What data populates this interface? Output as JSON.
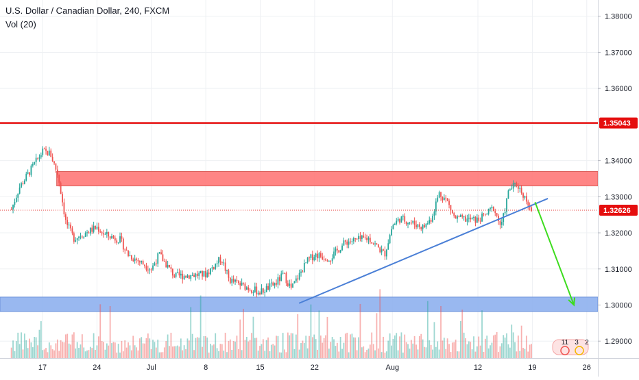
{
  "header": {
    "symbol_title": "U.S. Dollar / Canadian Dollar, 240, FXCM",
    "volume_label": "Vol (20)"
  },
  "price_scale": {
    "ticks": [
      "1.38000",
      "1.37000",
      "1.36000",
      "1.35043",
      "1.34000",
      "1.33000",
      "1.32626",
      "1.32000",
      "1.31000",
      "1.30000",
      "1.29000"
    ]
  },
  "time_scale": {
    "ticks": [
      "17",
      "24",
      "Jul",
      "8",
      "15",
      "22",
      "Aug",
      "12",
      "19",
      "26"
    ]
  },
  "badges": {
    "resistance_price": "1.35043",
    "last_price": "1.32626"
  },
  "corner_logo": {
    "numbers": [
      "11",
      "3",
      "2"
    ]
  },
  "colors": {
    "up_candle": "#26a69a",
    "down_candle": "#ef5350",
    "resistance_line": "#e50e0e",
    "resistance_zone": "#ff7f7f",
    "support_zone": "#8fb1ef",
    "trendline": "#4a7fd6",
    "arrow": "#3ddc1e",
    "last_price_line": "#e53935"
  },
  "chart_data": {
    "type": "candlestick",
    "interval": "240",
    "ylim": [
      1.2853,
      1.3845
    ],
    "y_ticks": [
      1.38,
      1.37,
      1.36,
      1.35,
      1.34,
      1.33,
      1.32,
      1.31,
      1.3,
      1.29
    ],
    "x_ticks": [
      "17",
      "24",
      "Jul",
      "8",
      "15",
      "22",
      "Aug",
      "12",
      "19",
      "26"
    ],
    "price_path": [
      {
        "t": "Jun 13",
        "price": 1.3265
      },
      {
        "t": "Jun 14",
        "price": 1.3325
      },
      {
        "t": "Jun 17",
        "price": 1.3425
      },
      {
        "t": "Jun 18",
        "price": 1.342
      },
      {
        "t": "Jun 19",
        "price": 1.336
      },
      {
        "t": "Jun 20",
        "price": 1.323
      },
      {
        "t": "Jun 21",
        "price": 1.3185
      },
      {
        "t": "Jun 24",
        "price": 1.3215
      },
      {
        "t": "Jun 25",
        "price": 1.3195
      },
      {
        "t": "Jun 27",
        "price": 1.318
      },
      {
        "t": "Jun 28",
        "price": 1.314
      },
      {
        "t": "Jul 1",
        "price": 1.31
      },
      {
        "t": "Jul 2",
        "price": 1.314
      },
      {
        "t": "Jul 4",
        "price": 1.308
      },
      {
        "t": "Jul 8",
        "price": 1.3085
      },
      {
        "t": "Jul 10",
        "price": 1.313
      },
      {
        "t": "Jul 11",
        "price": 1.307
      },
      {
        "t": "Jul 12",
        "price": 1.306
      },
      {
        "t": "Jul 15",
        "price": 1.3035
      },
      {
        "t": "Jul 17",
        "price": 1.306
      },
      {
        "t": "Jul 18",
        "price": 1.3085
      },
      {
        "t": "Jul 19",
        "price": 1.3045
      },
      {
        "t": "Jul 21",
        "price": 1.312
      },
      {
        "t": "Jul 22",
        "price": 1.314
      },
      {
        "t": "Jul 24",
        "price": 1.313
      },
      {
        "t": "Jul 26",
        "price": 1.3175
      },
      {
        "t": "Jul 29",
        "price": 1.3185
      },
      {
        "t": "Jul 31",
        "price": 1.314
      },
      {
        "t": "Aug 1",
        "price": 1.322
      },
      {
        "t": "Aug 2",
        "price": 1.324
      },
      {
        "t": "Aug 5",
        "price": 1.3215
      },
      {
        "t": "Aug 6",
        "price": 1.324
      },
      {
        "t": "Aug 7",
        "price": 1.331
      },
      {
        "t": "Aug 8",
        "price": 1.329
      },
      {
        "t": "Aug 9",
        "price": 1.324
      },
      {
        "t": "Aug 12",
        "price": 1.3235
      },
      {
        "t": "Aug 13",
        "price": 1.325
      },
      {
        "t": "Aug 14",
        "price": 1.327
      },
      {
        "t": "Aug 15",
        "price": 1.3215
      },
      {
        "t": "Aug 16",
        "price": 1.332
      },
      {
        "t": "Aug 17",
        "price": 1.3335
      },
      {
        "t": "Aug 18",
        "price": 1.33
      },
      {
        "t": "Aug 19",
        "price": 1.3263
      }
    ],
    "horizontal_lines": [
      {
        "name": "resistance",
        "price": 1.35043
      },
      {
        "name": "last price",
        "price": 1.32626
      }
    ],
    "zones": [
      {
        "name": "resistance zone",
        "from": 1.333,
        "to": 1.337
      },
      {
        "name": "support zone",
        "from": 1.2982,
        "to": 1.3022
      }
    ],
    "trendline": {
      "from": {
        "t": "Jul 20",
        "price": 1.3005
      },
      "to": {
        "t": "Aug 21",
        "price": 1.3295
      }
    },
    "projection_arrow": {
      "from": {
        "t": "Aug 19",
        "price": 1.3285
      },
      "to": {
        "t": "Aug 24",
        "price": 1.3
      }
    },
    "volume_indicator": "Vol (20)",
    "grid": true
  }
}
